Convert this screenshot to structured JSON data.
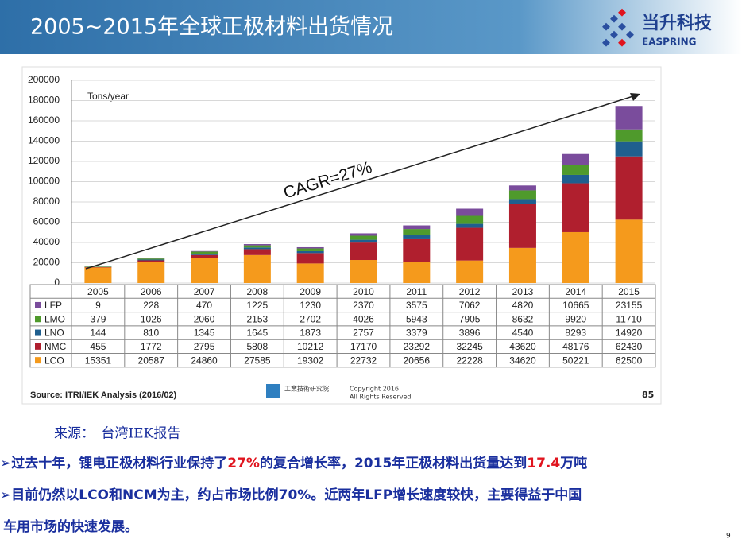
{
  "header": {
    "title": "2005~2015年全球正极材料出货情况",
    "logo_text": "当升科技",
    "logo_subtext": "EASPRING"
  },
  "chart_data": {
    "type": "stacked_bar",
    "unit_label": "Tons/year",
    "annotation": "CAGR=27%",
    "categories": [
      "2005",
      "2006",
      "2007",
      "2008",
      "2009",
      "2010",
      "2011",
      "2012",
      "2013",
      "2014",
      "2015"
    ],
    "series": [
      {
        "name": "LCO",
        "color": "#f59a1c",
        "values": [
          15351,
          20587,
          24860,
          27585,
          19302,
          22732,
          20656,
          22228,
          34620,
          50221,
          62500
        ]
      },
      {
        "name": "NMC",
        "color": "#b01f2e",
        "values": [
          455,
          1772,
          2795,
          5808,
          10212,
          17170,
          23292,
          32245,
          43620,
          48176,
          62430
        ]
      },
      {
        "name": "LNO",
        "color": "#1f5f8f",
        "values": [
          144,
          810,
          1345,
          1645,
          1873,
          2757,
          3379,
          3896,
          4540,
          8293,
          14920
        ]
      },
      {
        "name": "LMO",
        "color": "#4f9a2c",
        "values": [
          379,
          1026,
          2060,
          2153,
          2702,
          4026,
          5943,
          7905,
          8632,
          9920,
          11710
        ]
      },
      {
        "name": "LFP",
        "color": "#7a4c9c",
        "values": [
          9,
          228,
          470,
          1225,
          1230,
          2370,
          3575,
          7062,
          4820,
          10665,
          23155
        ]
      }
    ],
    "ylim": [
      0,
      200000
    ],
    "yticks": [
      0,
      20000,
      40000,
      60000,
      80000,
      100000,
      120000,
      140000,
      160000,
      180000,
      200000
    ],
    "grid": true
  },
  "chart_footer": {
    "source": "Source: ITRI/IEK Analysis (2016/02)",
    "institute": "工業技術研究院",
    "copyright": "Copyright 2016",
    "rights": "All Rights Reserved",
    "page": "85"
  },
  "source_note": "来源：　台湾IEK报告",
  "lines": [
    [
      {
        "text": "➢过去十年，锂电正极材料行业保持了",
        "color": "#1a2f9e"
      },
      {
        "text": "27%",
        "color": "#e0141e"
      },
      {
        "text": "的复合增长率，2015年正极材料出货量达到",
        "color": "#1a2f9e"
      },
      {
        "text": "17.4",
        "color": "#e0141e"
      },
      {
        "text": "万吨",
        "color": "#1a2f9e"
      }
    ],
    [
      {
        "text": "➢目前仍然以LCO和NCM为主，约占市场比例70%。近两年LFP增长速度较快，主要得益于中国",
        "color": "#1a2f9e"
      }
    ],
    [
      {
        "text": "车用市场的快速发展。",
        "color": "#1a2f9e"
      }
    ]
  ],
  "page_number": "9"
}
